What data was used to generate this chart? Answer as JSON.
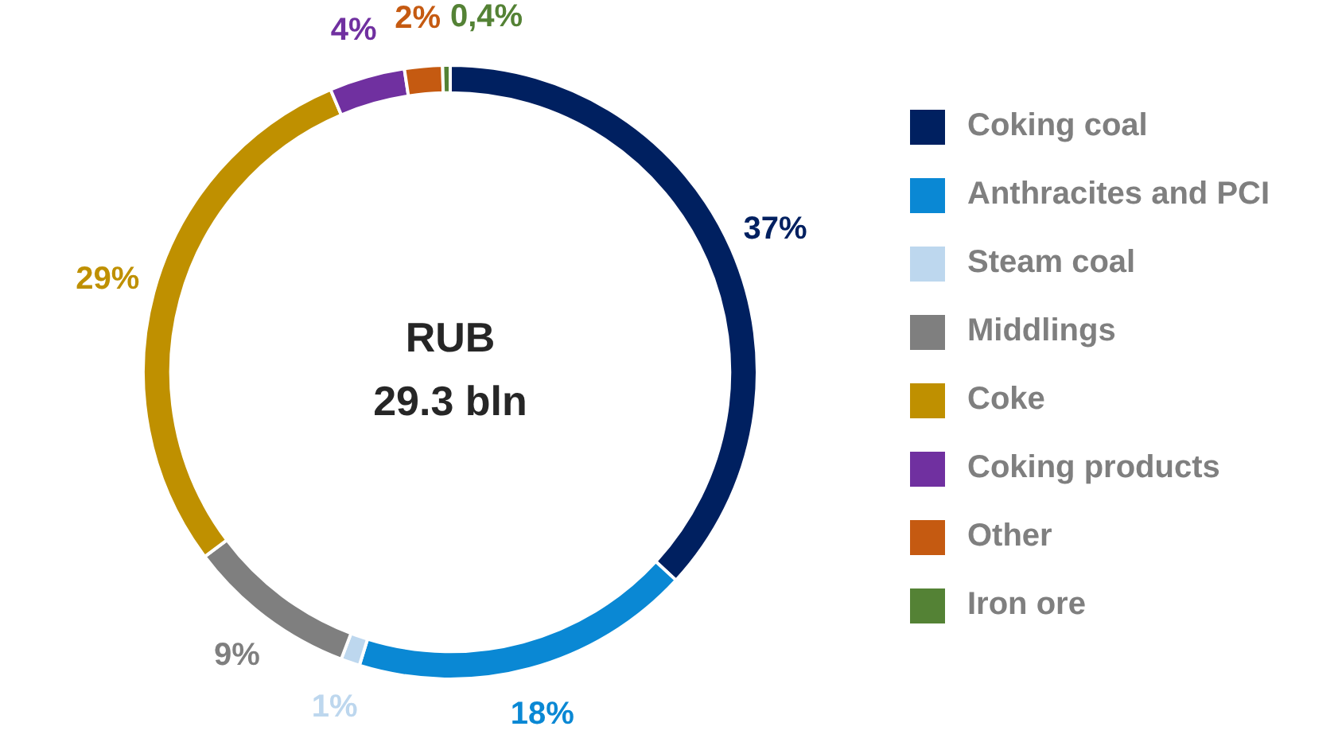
{
  "chart_data": {
    "type": "donut",
    "categories": [
      "Coking coal",
      "Anthracites and PCI",
      "Steam coal",
      "Middlings",
      "Coke",
      "Coking products",
      "Other",
      "Iron ore"
    ],
    "values": [
      37,
      18,
      1,
      9,
      29,
      4,
      2,
      0.4
    ],
    "value_labels": [
      "37%",
      "18%",
      "1%",
      "9%",
      "29%",
      "4%",
      "2%",
      "0,4%"
    ],
    "colors": [
      "#002060",
      "#0a88d4",
      "#bdd7ee",
      "#7f7f7f",
      "#bf9000",
      "#7030a0",
      "#c55a11",
      "#548235"
    ],
    "annotations": [
      "RUB",
      "29.3 bln"
    ],
    "legend": "right"
  }
}
